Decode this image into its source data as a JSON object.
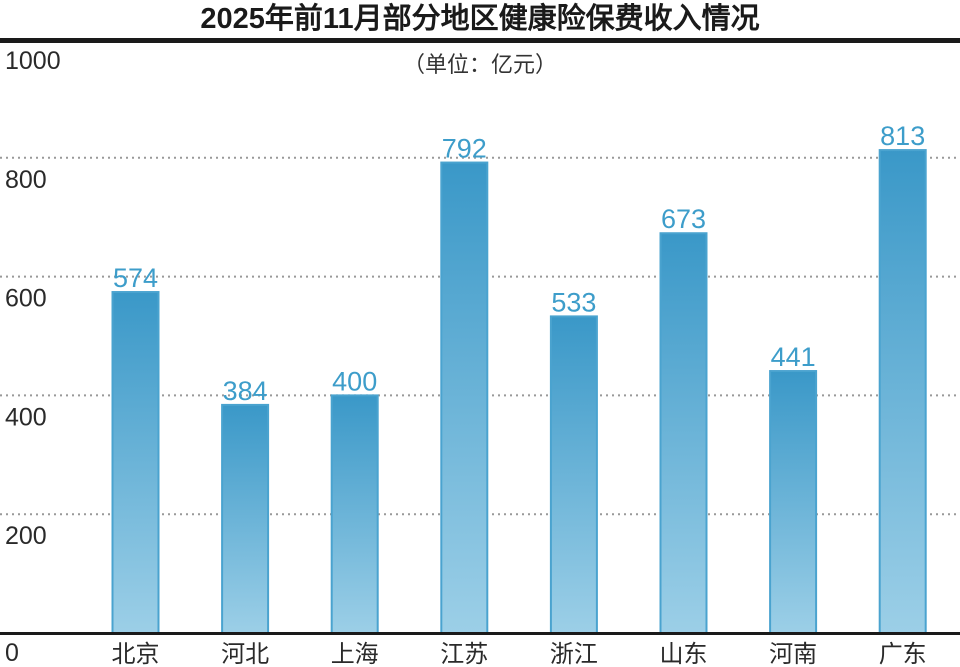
{
  "chart_data": {
    "type": "bar",
    "title": "2025年前11月部分地区健康险保费收入情况",
    "unit": "（单位：亿元）",
    "xlabel": "",
    "ylabel": "",
    "categories": [
      "北京",
      "河北",
      "上海",
      "江苏",
      "浙江",
      "山东",
      "河南",
      "广东"
    ],
    "values": [
      574,
      384,
      400,
      792,
      533,
      673,
      441,
      813
    ],
    "ylim": [
      0,
      1000
    ],
    "yticks": [
      0,
      200,
      400,
      600,
      800,
      1000
    ],
    "grid": true,
    "colors": {
      "bar_top": "#3a98c8",
      "bar_bottom": "#9ccfe7",
      "bar_edge": "#4aa3cf",
      "label": "#3d9dca"
    }
  }
}
